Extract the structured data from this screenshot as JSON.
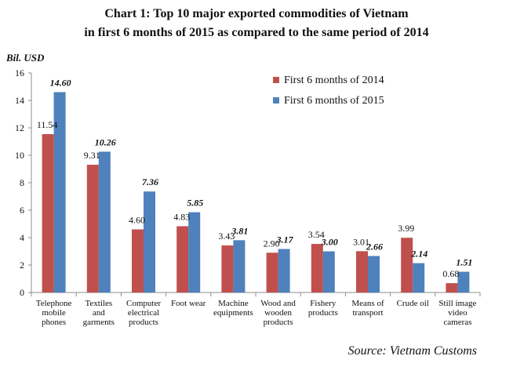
{
  "title_line1": "Chart 1: Top 10 major exported commodities of Vietnam",
  "title_line2": "in first 6 months of 2015 as compared to the same period of 2014",
  "source": "Source: Vietnam Customs",
  "chart_data": {
    "type": "bar",
    "ylabel": "Bil. USD",
    "ylim": [
      0,
      16
    ],
    "yticks": [
      0,
      2,
      4,
      6,
      8,
      10,
      12,
      14,
      16
    ],
    "grid": false,
    "legend_position": "top-right",
    "categories": [
      [
        "Telephone",
        "mobile",
        "phones"
      ],
      [
        "Textiles",
        "and",
        "garments"
      ],
      [
        "Computer",
        "electrical",
        "products"
      ],
      [
        "Foot wear"
      ],
      [
        "Machine",
        "equipments"
      ],
      [
        "Wood and",
        "wooden",
        "products"
      ],
      [
        "Fishery",
        "products"
      ],
      [
        "Means of",
        "transport"
      ],
      [
        "Crude oil"
      ],
      [
        "Still image",
        "video",
        "cameras"
      ]
    ],
    "series": [
      {
        "name": "First 6 months of 2014",
        "color": "#c0504d",
        "values": [
          11.54,
          9.31,
          4.6,
          4.83,
          3.43,
          2.9,
          3.54,
          3.01,
          3.99,
          0.68
        ],
        "labels": [
          "11.54",
          "9.31",
          "4.60",
          "4.83",
          "3.43",
          "2.90",
          "3.54",
          "3.01",
          "3.99",
          "0.68"
        ]
      },
      {
        "name": "First 6 months of 2015",
        "color": "#4f81bd",
        "values": [
          14.6,
          10.26,
          7.36,
          5.85,
          3.81,
          3.17,
          3.0,
          2.66,
          2.14,
          1.51
        ],
        "labels": [
          "14.60",
          "10.26",
          "7.36",
          "5.85",
          "3.81",
          "3.17",
          "3.00",
          "2.66",
          "2.14",
          "1.51"
        ]
      }
    ]
  }
}
